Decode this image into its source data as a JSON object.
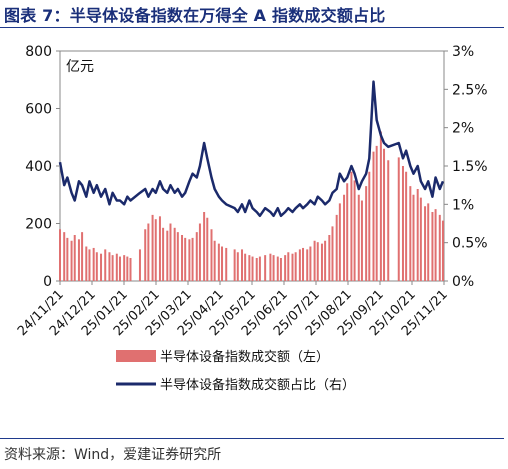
{
  "title": "图表 7：半导体设备指数在万得全 A 指数成交额占比",
  "source": "资料来源：Wind，爱建证券研究所",
  "colors": {
    "bar": "#e07070",
    "line": "#1b2a6b",
    "title": "#1a2f7a"
  },
  "chart_data": {
    "type": "bar+line",
    "unit_left": "亿元",
    "ylim_left": [
      0,
      800
    ],
    "yticks_left": [
      "0",
      "200",
      "400",
      "600",
      "800"
    ],
    "ylim_right": [
      0,
      3
    ],
    "yticks_right": [
      "0%",
      "0.5%",
      "1%",
      "1.5%",
      "2%",
      "2.5%",
      "3%"
    ],
    "x_tick_labels": [
      "24/11/21",
      "24/12/21",
      "25/01/21",
      "25/02/21",
      "25/03/21",
      "25/04/21",
      "25/05/21",
      "25/06/21",
      "25/07/21",
      "25/08/21",
      "25/09/21",
      "25/10/21",
      "25/11/21"
    ],
    "x_start": "2024-11-21",
    "x_end": "2025-11-21",
    "legend": [
      "半导体设备指数成交额（左）",
      "半导体设备指数成交额占比（右）"
    ],
    "legend_position": "bottom",
    "grid": false,
    "series": [
      {
        "name": "半导体设备指数成交额（左）",
        "type": "bar",
        "points": [
          [
            "2024-11-21",
            180
          ],
          [
            "2024-11-25",
            170
          ],
          [
            "2024-11-28",
            150
          ],
          [
            "2024-12-02",
            140
          ],
          [
            "2024-12-05",
            160
          ],
          [
            "2024-12-09",
            145
          ],
          [
            "2024-12-12",
            170
          ],
          [
            "2024-12-16",
            120
          ],
          [
            "2024-12-19",
            110
          ],
          [
            "2024-12-23",
            115
          ],
          [
            "2024-12-26",
            100
          ],
          [
            "2024-12-30",
            95
          ],
          [
            "2025-01-03",
            110
          ],
          [
            "2025-01-07",
            100
          ],
          [
            "2025-01-10",
            90
          ],
          [
            "2025-01-14",
            95
          ],
          [
            "2025-01-17",
            85
          ],
          [
            "2025-01-21",
            90
          ],
          [
            "2025-01-24",
            85
          ],
          [
            "2025-01-27",
            80
          ],
          [
            "2025-02-05",
            110
          ],
          [
            "2025-02-10",
            180
          ],
          [
            "2025-02-13",
            200
          ],
          [
            "2025-02-17",
            230
          ],
          [
            "2025-02-20",
            215
          ],
          [
            "2025-02-24",
            225
          ],
          [
            "2025-02-27",
            185
          ],
          [
            "2025-03-03",
            175
          ],
          [
            "2025-03-06",
            200
          ],
          [
            "2025-03-10",
            185
          ],
          [
            "2025-03-13",
            170
          ],
          [
            "2025-03-17",
            160
          ],
          [
            "2025-03-20",
            150
          ],
          [
            "2025-03-24",
            145
          ],
          [
            "2025-03-27",
            150
          ],
          [
            "2025-03-31",
            170
          ],
          [
            "2025-04-03",
            200
          ],
          [
            "2025-04-07",
            240
          ],
          [
            "2025-04-10",
            220
          ],
          [
            "2025-04-14",
            180
          ],
          [
            "2025-04-17",
            140
          ],
          [
            "2025-04-21",
            130
          ],
          [
            "2025-04-24",
            120
          ],
          [
            "2025-04-28",
            115
          ],
          [
            "2025-05-06",
            110
          ],
          [
            "2025-05-09",
            100
          ],
          [
            "2025-05-13",
            110
          ],
          [
            "2025-05-16",
            95
          ],
          [
            "2025-05-20",
            90
          ],
          [
            "2025-05-23",
            85
          ],
          [
            "2025-05-27",
            80
          ],
          [
            "2025-05-30",
            85
          ],
          [
            "2025-06-04",
            90
          ],
          [
            "2025-06-09",
            95
          ],
          [
            "2025-06-12",
            90
          ],
          [
            "2025-06-16",
            85
          ],
          [
            "2025-06-19",
            80
          ],
          [
            "2025-06-23",
            90
          ],
          [
            "2025-06-26",
            100
          ],
          [
            "2025-06-30",
            95
          ],
          [
            "2025-07-03",
            100
          ],
          [
            "2025-07-07",
            110
          ],
          [
            "2025-07-10",
            115
          ],
          [
            "2025-07-14",
            110
          ],
          [
            "2025-07-17",
            120
          ],
          [
            "2025-07-21",
            140
          ],
          [
            "2025-07-24",
            135
          ],
          [
            "2025-07-28",
            130
          ],
          [
            "2025-07-31",
            140
          ],
          [
            "2025-08-04",
            160
          ],
          [
            "2025-08-07",
            190
          ],
          [
            "2025-08-11",
            230
          ],
          [
            "2025-08-14",
            270
          ],
          [
            "2025-08-18",
            300
          ],
          [
            "2025-08-21",
            340
          ],
          [
            "2025-08-25",
            380
          ],
          [
            "2025-08-28",
            350
          ],
          [
            "2025-09-01",
            300
          ],
          [
            "2025-09-04",
            280
          ],
          [
            "2025-09-08",
            330
          ],
          [
            "2025-09-11",
            380
          ],
          [
            "2025-09-15",
            450
          ],
          [
            "2025-09-18",
            470
          ],
          [
            "2025-09-22",
            520
          ],
          [
            "2025-09-25",
            460
          ],
          [
            "2025-09-29",
            420
          ],
          [
            "2025-10-09",
            430
          ],
          [
            "2025-10-13",
            400
          ],
          [
            "2025-10-16",
            380
          ],
          [
            "2025-10-20",
            330
          ],
          [
            "2025-10-23",
            300
          ],
          [
            "2025-10-27",
            320
          ],
          [
            "2025-10-30",
            290
          ],
          [
            "2025-11-03",
            260
          ],
          [
            "2025-11-06",
            270
          ],
          [
            "2025-11-10",
            240
          ],
          [
            "2025-11-13",
            250
          ],
          [
            "2025-11-17",
            230
          ],
          [
            "2025-11-20",
            210
          ]
        ]
      },
      {
        "name": "半导体设备指数成交额占比（右）",
        "type": "line",
        "points": [
          [
            "2024-11-21",
            1.55
          ],
          [
            "2024-11-25",
            1.25
          ],
          [
            "2024-11-28",
            1.35
          ],
          [
            "2024-12-02",
            1.15
          ],
          [
            "2024-12-05",
            1.05
          ],
          [
            "2024-12-09",
            1.3
          ],
          [
            "2024-12-12",
            1.25
          ],
          [
            "2024-12-16",
            1.1
          ],
          [
            "2024-12-19",
            1.3
          ],
          [
            "2024-12-23",
            1.15
          ],
          [
            "2024-12-26",
            1.25
          ],
          [
            "2024-12-30",
            1.1
          ],
          [
            "2025-01-03",
            1.2
          ],
          [
            "2025-01-07",
            1.0
          ],
          [
            "2025-01-10",
            1.15
          ],
          [
            "2025-01-14",
            1.05
          ],
          [
            "2025-01-17",
            1.05
          ],
          [
            "2025-01-21",
            1.0
          ],
          [
            "2025-01-24",
            1.1
          ],
          [
            "2025-01-27",
            1.05
          ],
          [
            "2025-02-05",
            1.15
          ],
          [
            "2025-02-10",
            1.2
          ],
          [
            "2025-02-13",
            1.1
          ],
          [
            "2025-02-17",
            1.2
          ],
          [
            "2025-02-20",
            1.15
          ],
          [
            "2025-02-24",
            1.3
          ],
          [
            "2025-02-27",
            1.2
          ],
          [
            "2025-03-03",
            1.15
          ],
          [
            "2025-03-06",
            1.25
          ],
          [
            "2025-03-10",
            1.15
          ],
          [
            "2025-03-13",
            1.2
          ],
          [
            "2025-03-17",
            1.1
          ],
          [
            "2025-03-20",
            1.15
          ],
          [
            "2025-03-24",
            1.3
          ],
          [
            "2025-03-27",
            1.4
          ],
          [
            "2025-03-31",
            1.35
          ],
          [
            "2025-04-03",
            1.5
          ],
          [
            "2025-04-07",
            1.8
          ],
          [
            "2025-04-10",
            1.6
          ],
          [
            "2025-04-14",
            1.35
          ],
          [
            "2025-04-17",
            1.2
          ],
          [
            "2025-04-21",
            1.1
          ],
          [
            "2025-04-24",
            1.05
          ],
          [
            "2025-04-28",
            1.0
          ],
          [
            "2025-05-06",
            0.95
          ],
          [
            "2025-05-09",
            0.9
          ],
          [
            "2025-05-13",
            1.0
          ],
          [
            "2025-05-16",
            0.9
          ],
          [
            "2025-05-20",
            1.05
          ],
          [
            "2025-05-23",
            0.95
          ],
          [
            "2025-05-27",
            0.9
          ],
          [
            "2025-05-30",
            0.85
          ],
          [
            "2025-06-04",
            0.95
          ],
          [
            "2025-06-09",
            0.9
          ],
          [
            "2025-06-12",
            0.85
          ],
          [
            "2025-06-16",
            0.95
          ],
          [
            "2025-06-19",
            0.85
          ],
          [
            "2025-06-23",
            0.9
          ],
          [
            "2025-06-26",
            0.95
          ],
          [
            "2025-06-30",
            0.9
          ],
          [
            "2025-07-03",
            0.95
          ],
          [
            "2025-07-07",
            1.0
          ],
          [
            "2025-07-10",
            0.95
          ],
          [
            "2025-07-14",
            1.0
          ],
          [
            "2025-07-17",
            1.05
          ],
          [
            "2025-07-21",
            1.0
          ],
          [
            "2025-07-24",
            1.1
          ],
          [
            "2025-07-28",
            1.05
          ],
          [
            "2025-07-31",
            1.0
          ],
          [
            "2025-08-04",
            1.05
          ],
          [
            "2025-08-07",
            1.15
          ],
          [
            "2025-08-11",
            1.2
          ],
          [
            "2025-08-14",
            1.4
          ],
          [
            "2025-08-18",
            1.3
          ],
          [
            "2025-08-21",
            1.35
          ],
          [
            "2025-08-25",
            1.5
          ],
          [
            "2025-08-28",
            1.4
          ],
          [
            "2025-09-01",
            1.2
          ],
          [
            "2025-09-04",
            1.3
          ],
          [
            "2025-09-08",
            1.4
          ],
          [
            "2025-09-11",
            1.6
          ],
          [
            "2025-09-15",
            2.6
          ],
          [
            "2025-09-18",
            2.1
          ],
          [
            "2025-09-22",
            1.9
          ],
          [
            "2025-09-25",
            1.8
          ],
          [
            "2025-09-29",
            1.75
          ],
          [
            "2025-10-09",
            1.8
          ],
          [
            "2025-10-13",
            1.6
          ],
          [
            "2025-10-16",
            1.7
          ],
          [
            "2025-10-20",
            1.5
          ],
          [
            "2025-10-23",
            1.4
          ],
          [
            "2025-10-27",
            1.5
          ],
          [
            "2025-10-30",
            1.3
          ],
          [
            "2025-11-03",
            1.2
          ],
          [
            "2025-11-06",
            1.3
          ],
          [
            "2025-11-10",
            1.1
          ],
          [
            "2025-11-13",
            1.35
          ],
          [
            "2025-11-17",
            1.2
          ],
          [
            "2025-11-20",
            1.3
          ]
        ]
      }
    ]
  }
}
